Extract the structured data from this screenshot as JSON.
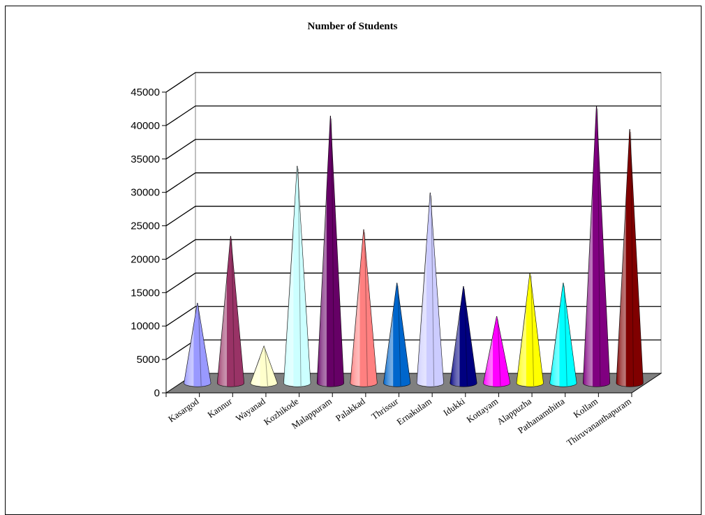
{
  "chart_data": {
    "type": "bar",
    "title": "Number of Students",
    "xlabel": "",
    "ylabel": "",
    "ylim": [
      0,
      45000
    ],
    "yticks": [
      0,
      5000,
      10000,
      15000,
      20000,
      25000,
      30000,
      35000,
      40000,
      45000
    ],
    "grid": true,
    "legend": "none",
    "categories": [
      "Kasargod",
      "Kannur",
      "Wayanad",
      "Kozhikode",
      "Malappuram",
      "Palakkad",
      "Thrissur",
      "Ernakulam",
      "Idukki",
      "Kottayam",
      "Alappuzha",
      "Pathanamthitta",
      "Kollam",
      "Thiruvananthapuram"
    ],
    "values": [
      12000,
      22000,
      5500,
      32500,
      40000,
      23000,
      15000,
      28500,
      14500,
      10000,
      16500,
      15000,
      41500,
      38000
    ],
    "colors": [
      "#9999ff",
      "#993366",
      "#ffffcc",
      "#ccffff",
      "#660066",
      "#ff8080",
      "#0066cc",
      "#ccccff",
      "#000080",
      "#ff00ff",
      "#ffff00",
      "#00ffff",
      "#800080",
      "#800000"
    ]
  }
}
